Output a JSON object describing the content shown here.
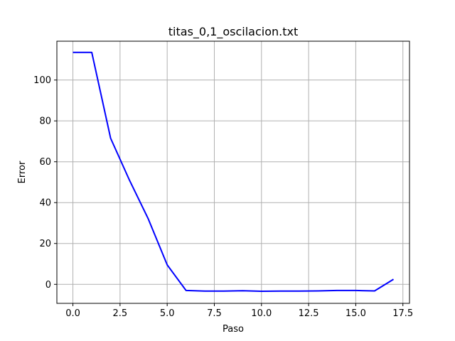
{
  "chart_data": {
    "type": "line",
    "title": "titas_0,1_oscilacion.txt",
    "xlabel": "Paso",
    "ylabel": "Error",
    "xlim": [
      -0.85,
      17.85
    ],
    "ylim": [
      -9.3,
      119.0
    ],
    "xticks": [
      0.0,
      2.5,
      5.0,
      7.5,
      10.0,
      12.5,
      15.0,
      17.5
    ],
    "xtick_labels": [
      "0.0",
      "2.5",
      "5.0",
      "7.5",
      "10.0",
      "12.5",
      "15.0",
      "17.5"
    ],
    "yticks": [
      0,
      20,
      40,
      60,
      80,
      100
    ],
    "ytick_labels": [
      "0",
      "20",
      "40",
      "60",
      "80",
      "100"
    ],
    "grid": true,
    "series": [
      {
        "color": "#0000ff",
        "x": [
          0,
          1,
          2,
          3,
          4,
          5,
          6,
          7,
          8,
          9,
          10,
          11,
          12,
          13,
          14,
          15,
          16,
          17
        ],
        "values": [
          113.5,
          113.5,
          71.5,
          51.0,
          32.0,
          9.5,
          -3.0,
          -3.3,
          -3.3,
          -3.1,
          -3.4,
          -3.3,
          -3.3,
          -3.2,
          -3.0,
          -3.0,
          -3.2,
          2.5
        ]
      }
    ]
  }
}
